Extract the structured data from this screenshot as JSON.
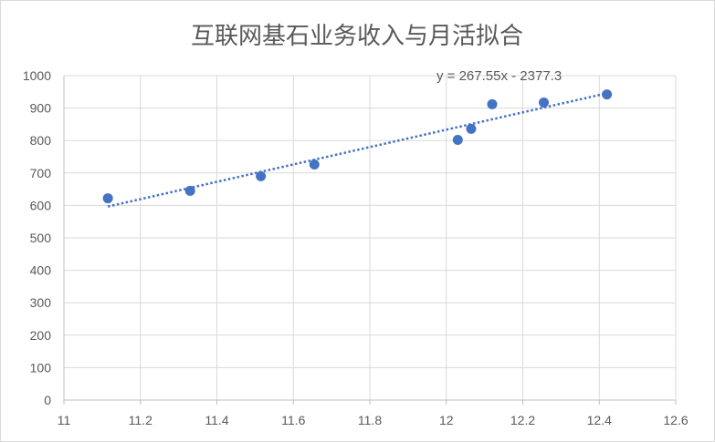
{
  "chart_data": {
    "type": "scatter",
    "title": "互联网基石业务收入与月活拟合",
    "xlim": [
      11,
      12.6
    ],
    "ylim": [
      0,
      1000
    ],
    "x_ticks": [
      11,
      11.2,
      11.4,
      11.6,
      11.8,
      12,
      12.2,
      12.4,
      12.6
    ],
    "x_tick_labels": [
      "11",
      "11.2",
      "11.4",
      "11.6",
      "11.8",
      "12",
      "12.2",
      "12.4",
      "12.6"
    ],
    "y_ticks": [
      0,
      100,
      200,
      300,
      400,
      500,
      600,
      700,
      800,
      900,
      1000
    ],
    "y_tick_labels": [
      "0",
      "100",
      "200",
      "300",
      "400",
      "500",
      "600",
      "700",
      "800",
      "900",
      "1000"
    ],
    "grid": true,
    "series": [
      {
        "points": [
          {
            "x": 11.115,
            "y": 622
          },
          {
            "x": 11.33,
            "y": 645
          },
          {
            "x": 11.515,
            "y": 690
          },
          {
            "x": 11.655,
            "y": 726
          },
          {
            "x": 12.03,
            "y": 802
          },
          {
            "x": 12.065,
            "y": 836
          },
          {
            "x": 12.12,
            "y": 912
          },
          {
            "x": 12.255,
            "y": 917
          },
          {
            "x": 12.42,
            "y": 942
          }
        ],
        "color": "#4472c4"
      }
    ],
    "trendline": {
      "slope": 267.55,
      "intercept": -2377.3,
      "x_range": [
        11.115,
        12.42
      ],
      "equation_label": "y = 267.55x - 2377.3",
      "color": "#4472c4",
      "style": "dotted"
    }
  },
  "colors": {
    "grid": "#d9d9d9",
    "axis": "#bfbfbf",
    "text": "#595959",
    "marker": "#4472c4"
  }
}
